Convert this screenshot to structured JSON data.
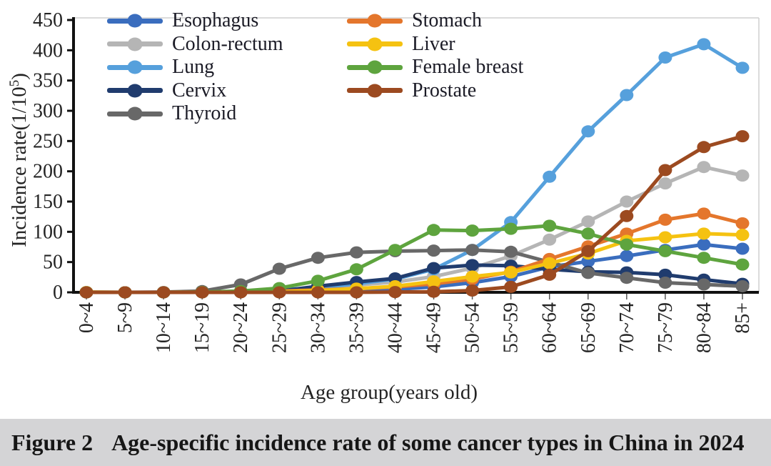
{
  "figure": {
    "caption_label": "Figure 2",
    "caption_text": "Age-specific incidence rate of some cancer types in China in 2024"
  },
  "chart_data": {
    "type": "line",
    "title": "",
    "xlabel": "Age group(years old)",
    "ylabel": "Incidence rate(1/10⁵)",
    "ylabel_parts": {
      "base": "Incidence rate(1/10",
      "sup": "5",
      "close": ")"
    },
    "ylim": [
      0,
      450
    ],
    "ytick_step": 50,
    "yticks": [
      0,
      50,
      100,
      150,
      200,
      250,
      300,
      350,
      400,
      450
    ],
    "grid": false,
    "legend_position": "upper left, two columns",
    "legend_columns": [
      [
        "Esophagus",
        "Colon-rectum",
        "Lung",
        "Cervix",
        "Thyroid"
      ],
      [
        "Stomach",
        "Liver",
        "Female breast",
        "Prostate"
      ]
    ],
    "categories": [
      "0~4",
      "5~9",
      "10~14",
      "15~19",
      "20~24",
      "25~29",
      "30~34",
      "35~39",
      "40~44",
      "45~49",
      "50~54",
      "55~59",
      "60~64",
      "65~69",
      "70~74",
      "75~79",
      "80~84",
      "85+"
    ],
    "series": [
      {
        "name": "Esophagus",
        "color": "#3a6dbe",
        "values": [
          0,
          0,
          0,
          0,
          0.5,
          1,
          2,
          3,
          5,
          9,
          16,
          26,
          42,
          51,
          60,
          70,
          79,
          72
        ]
      },
      {
        "name": "Colon-rectum",
        "color": "#b5b5b5",
        "values": [
          0,
          0,
          0,
          0.5,
          1.5,
          4,
          7,
          12,
          17,
          26,
          40,
          60,
          87,
          117,
          150,
          180,
          207,
          193
        ]
      },
      {
        "name": "Lung",
        "color": "#56a0dc",
        "values": [
          0.5,
          0,
          0,
          0.5,
          1.5,
          4,
          8,
          14,
          22,
          38,
          70,
          116,
          191,
          266,
          326,
          388,
          410,
          371
        ]
      },
      {
        "name": "Cervix",
        "color": "#203c6e",
        "values": [
          0,
          0,
          0,
          0,
          1,
          2,
          10,
          17,
          23,
          40,
          45,
          44,
          38,
          34,
          33,
          29,
          21,
          14
        ]
      },
      {
        "name": "Thyroid",
        "color": "#686868",
        "values": [
          0,
          0,
          0.5,
          2,
          13,
          39,
          57,
          66,
          68,
          69,
          70,
          67,
          50,
          32,
          24,
          16,
          13,
          10
        ]
      },
      {
        "name": "Stomach",
        "color": "#e4762c",
        "values": [
          0,
          0,
          0,
          0.5,
          1,
          2,
          4,
          6,
          9,
          14,
          22,
          34,
          55,
          76,
          97,
          120,
          130,
          114
        ]
      },
      {
        "name": "Liver",
        "color": "#f5c211",
        "values": [
          0.5,
          0,
          0,
          0,
          0.5,
          1,
          3,
          6,
          10,
          18,
          26,
          33,
          48,
          64,
          85,
          91,
          97,
          95
        ]
      },
      {
        "name": "Female breast",
        "color": "#5ea43e",
        "values": [
          0,
          0,
          0,
          0.5,
          2,
          7,
          19,
          38,
          70,
          103,
          102,
          105,
          110,
          97,
          79,
          68,
          57,
          46
        ]
      },
      {
        "name": "Prostate",
        "color": "#9c4a20",
        "values": [
          0,
          0,
          0,
          0,
          0,
          0,
          0,
          0,
          0.5,
          1,
          3,
          9,
          29,
          68,
          126,
          202,
          240,
          258
        ]
      }
    ],
    "axis_color": "#111111",
    "tick_label_color": "#242424"
  }
}
